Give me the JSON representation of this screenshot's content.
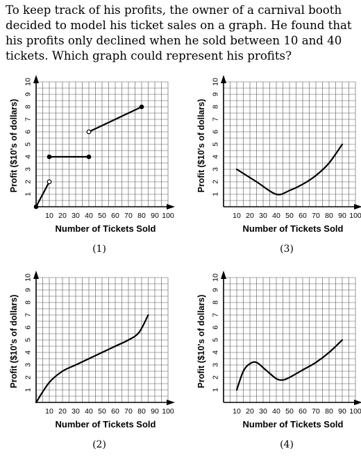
{
  "question": {
    "text": "To keep track of his profits, the owner of a carnival booth decided to model his ticket sales on a graph. He found that his profits only declined when he sold between 10 and 40 tickets. Which graph could represent his profits?"
  },
  "chart_data": [
    {
      "type": "line",
      "choice_label": "(1)",
      "xlabel": "Number of Tickets Sold",
      "ylabel": "Profit ($10's of dollars)",
      "x_ticks": [
        10,
        20,
        30,
        40,
        50,
        60,
        70,
        80,
        90,
        100
      ],
      "y_ticks": [
        1,
        2,
        3,
        4,
        5,
        6,
        7,
        8,
        9,
        10
      ],
      "xlim": [
        0,
        100
      ],
      "ylim": [
        0,
        10
      ],
      "grid": true,
      "segments": [
        {
          "points": [
            [
              0,
              0
            ],
            [
              10,
              2
            ]
          ],
          "start_marker": "closed",
          "end_marker": "open"
        },
        {
          "points": [
            [
              10,
              4
            ],
            [
              40,
              4
            ]
          ],
          "start_marker": "closed",
          "end_marker": "closed"
        },
        {
          "points": [
            [
              40,
              6
            ],
            [
              80,
              8
            ]
          ],
          "start_marker": "open",
          "end_marker": "closed"
        }
      ]
    },
    {
      "type": "line",
      "choice_label": "(3)",
      "xlabel": "Number of Tickets Sold",
      "ylabel": "Profit ($10's of dollars)",
      "x_ticks": [
        10,
        20,
        30,
        40,
        50,
        60,
        70,
        80,
        90,
        100
      ],
      "y_ticks": [
        1,
        2,
        3,
        4,
        5,
        6,
        7,
        8,
        9,
        10
      ],
      "xlim": [
        0,
        100
      ],
      "ylim": [
        0,
        10
      ],
      "grid": true,
      "segments": [
        {
          "points": [
            [
              10,
              3
            ],
            [
              25,
              2
            ],
            [
              40,
              1
            ],
            [
              50,
              1.3
            ],
            [
              60,
              1.8
            ],
            [
              70,
              2.5
            ],
            [
              80,
              3.5
            ],
            [
              90,
              5
            ]
          ]
        }
      ]
    },
    {
      "type": "line",
      "choice_label": "(2)",
      "xlabel": "Number of Tickets Sold",
      "ylabel": "Profit ($10's of dollars)",
      "x_ticks": [
        10,
        20,
        30,
        40,
        50,
        60,
        70,
        80,
        90,
        100
      ],
      "y_ticks": [
        1,
        2,
        3,
        4,
        5,
        6,
        7,
        8,
        9,
        10
      ],
      "xlim": [
        0,
        100
      ],
      "ylim": [
        0,
        10
      ],
      "grid": true,
      "segments": [
        {
          "points": [
            [
              0,
              0
            ],
            [
              10,
              1.6
            ],
            [
              20,
              2.5
            ],
            [
              30,
              3
            ],
            [
              40,
              3.5
            ],
            [
              50,
              4
            ],
            [
              60,
              4.5
            ],
            [
              70,
              5
            ],
            [
              78,
              5.6
            ],
            [
              85,
              7
            ]
          ]
        }
      ]
    },
    {
      "type": "line",
      "choice_label": "(4)",
      "xlabel": "Number of Tickets Sold",
      "ylabel": "Profit ($10's of dollars)",
      "x_ticks": [
        10,
        20,
        30,
        40,
        50,
        60,
        70,
        80,
        90,
        100
      ],
      "y_ticks": [
        1,
        2,
        3,
        4,
        5,
        6,
        7,
        8,
        9,
        10
      ],
      "xlim": [
        0,
        100
      ],
      "ylim": [
        0,
        10
      ],
      "grid": true,
      "segments": [
        {
          "points": [
            [
              10,
              1
            ],
            [
              15,
              2.5
            ],
            [
              20,
              3.1
            ],
            [
              25,
              3.2
            ],
            [
              32,
              2.6
            ],
            [
              40,
              1.9
            ],
            [
              45,
              1.8
            ],
            [
              50,
              2
            ],
            [
              60,
              2.6
            ],
            [
              70,
              3.2
            ],
            [
              80,
              4
            ],
            [
              90,
              5
            ]
          ]
        }
      ]
    }
  ]
}
